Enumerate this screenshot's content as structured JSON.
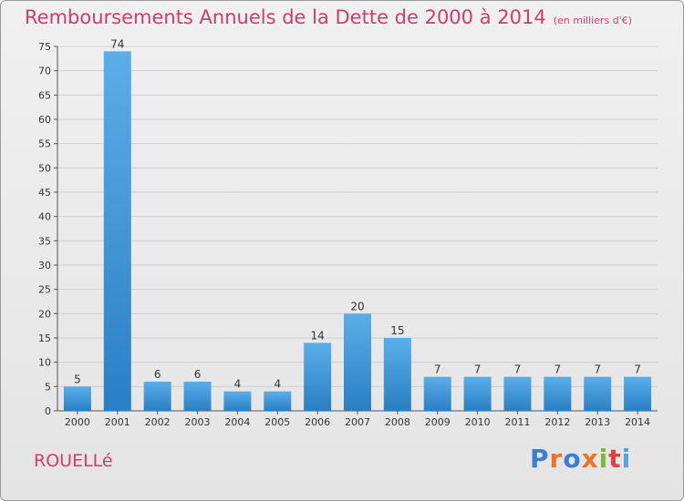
{
  "header": {
    "title": "Remboursements Annuels de la Dette de 2000 à 2014",
    "unit_note": "(en milliers d'€)"
  },
  "footer": {
    "place": "ROUELLé",
    "brand": "Proxiti"
  },
  "colors": {
    "title": "#cc3d6e",
    "bar_top": "#5aaee8",
    "bar_bottom": "#2a7fc4"
  },
  "chart_data": {
    "type": "bar",
    "title": "Remboursements Annuels de la Dette de 2000 à 2014",
    "categories": [
      "2000",
      "2001",
      "2002",
      "2003",
      "2004",
      "2005",
      "2006",
      "2007",
      "2008",
      "2009",
      "2010",
      "2011",
      "2012",
      "2013",
      "2014"
    ],
    "values": [
      5,
      74,
      6,
      6,
      4,
      4,
      14,
      20,
      15,
      7,
      7,
      7,
      7,
      7,
      7
    ],
    "ylim": [
      0,
      75
    ],
    "yticks": [
      0,
      5,
      10,
      15,
      20,
      25,
      30,
      35,
      40,
      45,
      50,
      55,
      60,
      65,
      70,
      75
    ],
    "grid": true,
    "data_labels": true
  }
}
